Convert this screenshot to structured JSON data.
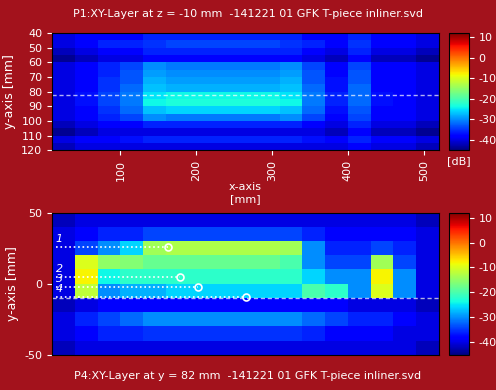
{
  "chart_data": [
    {
      "type": "heatmap",
      "title": "P1:XY-Layer at z = -10 mm  -141221 01 GFK T-piece inliner.svd",
      "x_label": "x-axis\n[mm]",
      "y_label": "y-axis [mm]",
      "xlim": [
        10,
        520
      ],
      "xticks": [
        100,
        200,
        300,
        400,
        500
      ],
      "ylim": [
        120,
        40
      ],
      "yticks": [
        40,
        50,
        60,
        70,
        80,
        90,
        100,
        110,
        120
      ],
      "cut_line": 82,
      "x_edges": [
        10,
        40,
        70,
        100,
        130,
        160,
        190,
        220,
        250,
        280,
        310,
        340,
        370,
        400,
        430,
        460,
        490,
        520
      ],
      "y_edges": [
        40,
        45,
        50,
        55,
        60,
        65,
        70,
        75,
        80,
        85,
        90,
        95,
        100,
        105,
        110,
        115,
        120
      ],
      "cells": [
        [
          -40,
          -38,
          -38,
          -38,
          -36,
          -36,
          -36,
          -36,
          -36,
          -36,
          -36,
          -38,
          -38,
          -36,
          -38,
          -38,
          -40
        ],
        [
          -40,
          -38,
          -36,
          -36,
          -35,
          -34,
          -34,
          -34,
          -34,
          -34,
          -35,
          -36,
          -38,
          -35,
          -38,
          -38,
          -40
        ],
        [
          -42,
          -40,
          -38,
          -38,
          -36,
          -36,
          -36,
          -36,
          -36,
          -36,
          -36,
          -38,
          -40,
          -36,
          -40,
          -40,
          -42
        ],
        [
          -44,
          -42,
          -40,
          -40,
          -38,
          -38,
          -38,
          -38,
          -38,
          -38,
          -38,
          -40,
          -42,
          -38,
          -42,
          -42,
          -44
        ],
        [
          -40,
          -38,
          -36,
          -34,
          -30,
          -31,
          -31,
          -31,
          -31,
          -31,
          -30,
          -34,
          -38,
          -34,
          -38,
          -38,
          -40
        ],
        [
          -40,
          -38,
          -36,
          -33,
          -29,
          -30,
          -30,
          -30,
          -30,
          -30,
          -29,
          -33,
          -38,
          -33,
          -38,
          -38,
          -40
        ],
        [
          -40,
          -38,
          -35,
          -33,
          -28,
          -29,
          -29,
          -29,
          -29,
          -29,
          -28,
          -33,
          -37,
          -33,
          -38,
          -38,
          -40
        ],
        [
          -40,
          -38,
          -35,
          -32,
          -27,
          -28,
          -28,
          -28,
          -28,
          -28,
          -27,
          -32,
          -37,
          -32,
          -38,
          -38,
          -40
        ],
        [
          -40,
          -37,
          -34,
          -31,
          -25,
          -24,
          -24,
          -24,
          -24,
          -24,
          -25,
          -31,
          -36,
          -32,
          -37,
          -38,
          -40
        ],
        [
          -40,
          -37,
          -34,
          -31,
          -24,
          -23,
          -23,
          -23,
          -23,
          -23,
          -24,
          -31,
          -36,
          -32,
          -37,
          -38,
          -40
        ],
        [
          -40,
          -38,
          -35,
          -32,
          -27,
          -26,
          -26,
          -26,
          -26,
          -26,
          -27,
          -32,
          -37,
          -33,
          -38,
          -38,
          -40
        ],
        [
          -40,
          -38,
          -36,
          -34,
          -30,
          -31,
          -31,
          -31,
          -31,
          -31,
          -30,
          -34,
          -38,
          -34,
          -38,
          -38,
          -40
        ],
        [
          -42,
          -40,
          -38,
          -38,
          -36,
          -36,
          -36,
          -36,
          -36,
          -36,
          -36,
          -38,
          -40,
          -36,
          -40,
          -40,
          -42
        ],
        [
          -44,
          -42,
          -40,
          -40,
          -40,
          -40,
          -40,
          -40,
          -40,
          -40,
          -40,
          -40,
          -42,
          -38,
          -42,
          -42,
          -44
        ],
        [
          -40,
          -38,
          -38,
          -37,
          -36,
          -36,
          -36,
          -36,
          -36,
          -36,
          -36,
          -37,
          -38,
          -36,
          -38,
          -38,
          -40
        ],
        [
          -42,
          -40,
          -40,
          -40,
          -40,
          -40,
          -40,
          -40,
          -40,
          -40,
          -40,
          -40,
          -40,
          -38,
          -40,
          -40,
          -42
        ]
      ],
      "colorbar": {
        "lim": [
          -45,
          12
        ],
        "ticks": [
          10,
          0,
          -10,
          -20,
          -30,
          -40
        ],
        "label": "[dB]"
      }
    },
    {
      "type": "heatmap",
      "title": "P4:XY-Layer at y = 82 mm  -141221 01 GFK T-piece inliner.svd",
      "y_label": "y-axis [mm]",
      "tick_labels": "y",
      "xlim": [
        10,
        520
      ],
      "ylim": [
        -50,
        50
      ],
      "yticks": [
        50,
        0,
        -50
      ],
      "cut_line": -10,
      "x_edges": [
        10,
        40,
        70,
        100,
        130,
        160,
        190,
        220,
        250,
        280,
        310,
        340,
        370,
        400,
        430,
        460,
        490,
        520
      ],
      "y_edges": [
        -50,
        -40,
        -30,
        -20,
        -10,
        0,
        10,
        20,
        30,
        40,
        50
      ],
      "cells": [
        [
          -42,
          -40,
          -40,
          -40,
          -40,
          -40,
          -40,
          -40,
          -40,
          -40,
          -40,
          -40,
          -40,
          -40,
          -40,
          -40,
          -42
        ],
        [
          -40,
          -38,
          -36,
          -36,
          -35,
          -35,
          -35,
          -35,
          -35,
          -35,
          -35,
          -36,
          -38,
          -38,
          -38,
          -40,
          -40
        ],
        [
          -40,
          -36,
          -34,
          -32,
          -30,
          -30,
          -30,
          -30,
          -30,
          -30,
          -30,
          -32,
          -34,
          -36,
          -36,
          -38,
          -40
        ],
        [
          -42,
          -40,
          -38,
          -38,
          -38,
          -38,
          -38,
          -38,
          -38,
          -38,
          -38,
          -38,
          -38,
          -40,
          -40,
          -40,
          -42
        ],
        [
          -40,
          -12,
          -30,
          -28,
          -28,
          -26,
          -26,
          -26,
          -26,
          -26,
          -26,
          -20,
          -22,
          -30,
          -10,
          -30,
          -40
        ],
        [
          -40,
          -8,
          -24,
          -22,
          -22,
          -22,
          -22,
          -22,
          -22,
          -22,
          -22,
          -26,
          -30,
          -30,
          -8,
          -30,
          -40
        ],
        [
          -40,
          -10,
          -15,
          -16,
          -18,
          -18,
          -18,
          -18,
          -18,
          -18,
          -20,
          -30,
          -34,
          -34,
          -14,
          -34,
          -40
        ],
        [
          -40,
          -34,
          -30,
          -26,
          -14,
          -13,
          -13,
          -13,
          -13,
          -13,
          -14,
          -30,
          -36,
          -36,
          -34,
          -36,
          -40
        ],
        [
          -40,
          -38,
          -36,
          -36,
          -34,
          -34,
          -34,
          -34,
          -34,
          -34,
          -34,
          -36,
          -38,
          -38,
          -38,
          -38,
          -40
        ],
        [
          -42,
          -40,
          -40,
          -40,
          -40,
          -40,
          -40,
          -40,
          -40,
          -40,
          -40,
          -40,
          -40,
          -40,
          -40,
          -40,
          -42
        ]
      ],
      "annotations": [
        {
          "label": "1",
          "label_x": 15,
          "x": 163,
          "y": 26
        },
        {
          "label": "2",
          "label_x": 15,
          "x": 178,
          "y": 5
        },
        {
          "label": "3",
          "label_x": 15,
          "x": 203,
          "y": -2
        },
        {
          "label": "4",
          "label_x": 15,
          "x": 266,
          "y": -9
        }
      ],
      "colorbar": {
        "lim": [
          -45,
          12
        ],
        "ticks": [
          10,
          0,
          -10,
          -20,
          -30,
          -40
        ]
      }
    }
  ]
}
